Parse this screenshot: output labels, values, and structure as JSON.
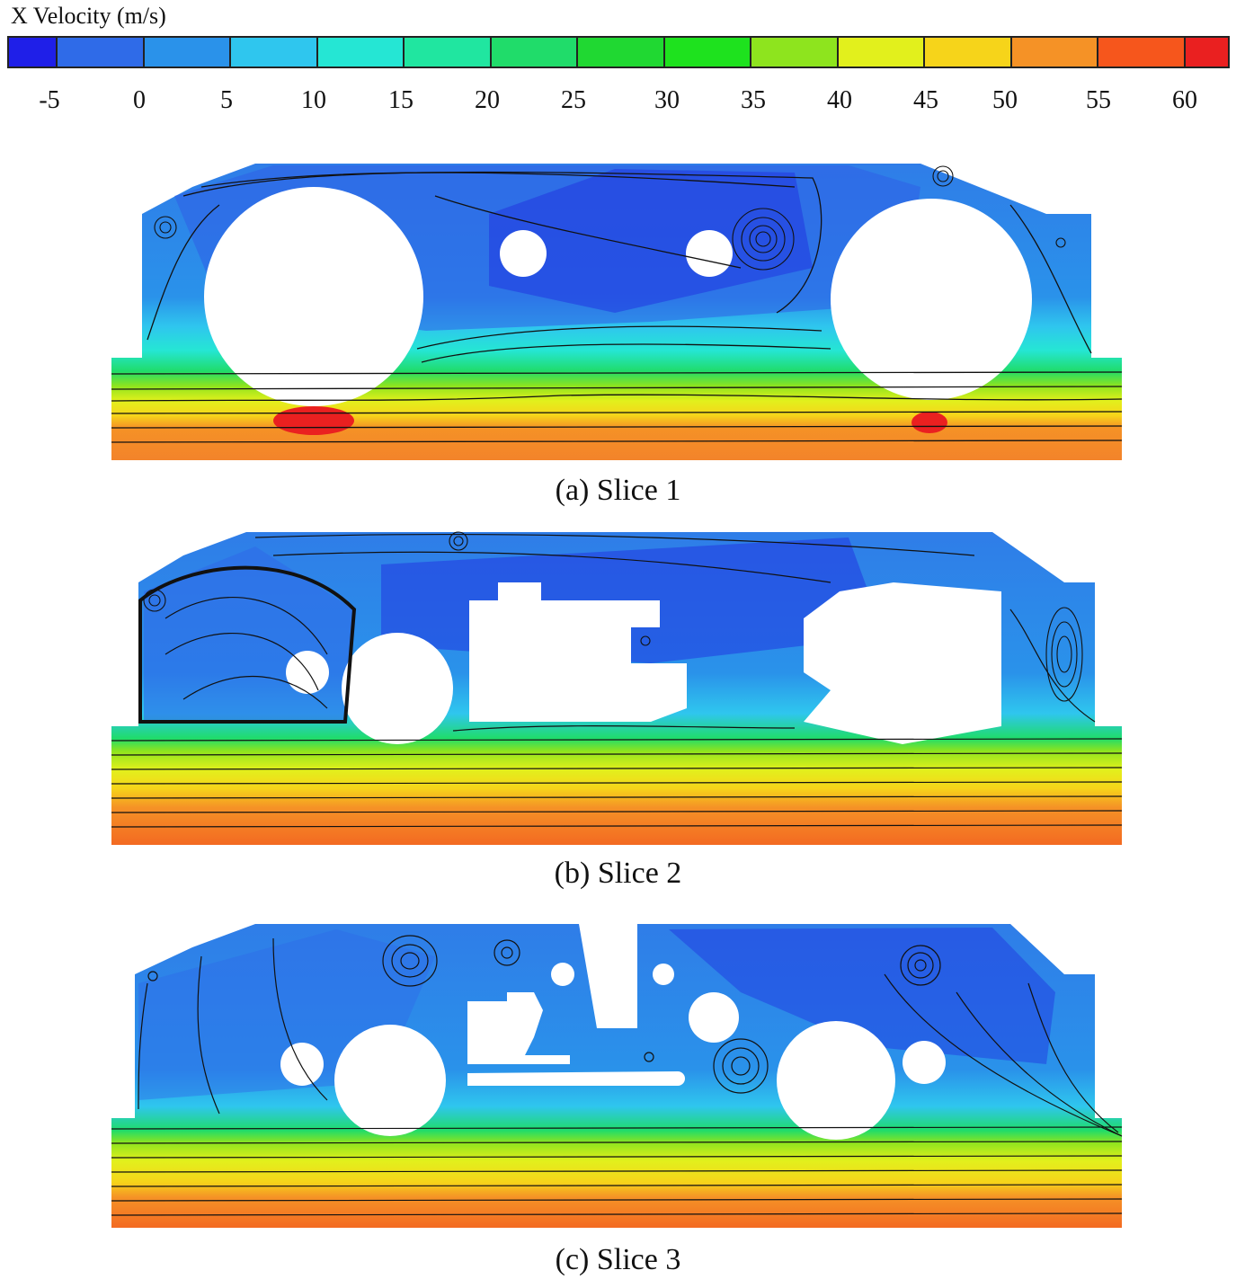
{
  "legend": {
    "title": "X Velocity (m/s)",
    "ticks": [
      "-5",
      "0",
      "5",
      "10",
      "15",
      "20",
      "25",
      "30",
      "35",
      "40",
      "45",
      "50",
      "55",
      "60"
    ],
    "colors": [
      "#1f1fe8",
      "#2f6be8",
      "#2a92ea",
      "#2fc6ee",
      "#25e6d4",
      "#20e6a0",
      "#20dc6a",
      "#20d832",
      "#1ee21e",
      "#8ee41e",
      "#e2f01c",
      "#f6d41a",
      "#f59226",
      "#f6561c",
      "#ea2020"
    ]
  },
  "panels": [
    {
      "id": "slice-1",
      "caption": "(a) Slice 1"
    },
    {
      "id": "slice-2",
      "caption": "(b) Slice 2"
    },
    {
      "id": "slice-3",
      "caption": "(c) Slice 3"
    }
  ]
}
